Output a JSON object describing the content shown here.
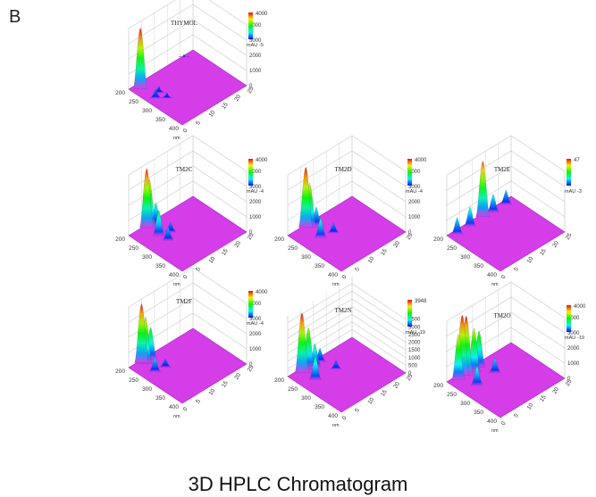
{
  "panel_label": "B",
  "caption": "3D HPLC Chromatogram",
  "colors": {
    "surface": "#d43de8",
    "surface_dark": "#a92ec0",
    "axes": "#8a8a8a",
    "grid": "#c8c8c8"
  },
  "chart_data": [
    {
      "type": "surface3d",
      "title": "THYMOL",
      "wavelength_axis": {
        "label": "nm",
        "ticks": [
          "200",
          "250",
          "300",
          "350",
          "400"
        ]
      },
      "time_axis": {
        "ticks": [
          "0",
          "5",
          "10",
          "15",
          "20",
          "25"
        ]
      },
      "z_axis": {
        "ticks": [
          "0",
          "1000",
          "2000",
          "3000",
          "4000"
        ],
        "range": [
          0,
          4000
        ]
      },
      "colorbar": {
        "max_label": "4000",
        "unit_label": "mAU",
        "min_label": "-5"
      },
      "peaks": [
        {
          "time": 3.0,
          "wavelength": 215,
          "height": 3900
        },
        {
          "time": 3.2,
          "wavelength": 270,
          "height": 500
        },
        {
          "time": 5.5,
          "wavelength": 260,
          "height": 350
        },
        {
          "time": 5.5,
          "wavelength": 290,
          "height": 300
        },
        {
          "time": 21.5,
          "wavelength": 200,
          "height": 80
        }
      ]
    },
    {
      "type": "surface3d",
      "title": "TM2C",
      "wavelength_axis": {
        "label": "nm",
        "ticks": [
          "200",
          "250",
          "300",
          "350",
          "400"
        ]
      },
      "time_axis": {
        "ticks": [
          "0",
          "5",
          "10",
          "15",
          "20",
          "25"
        ]
      },
      "z_axis": {
        "ticks": [
          "0",
          "1000",
          "2000",
          "3000",
          "4000"
        ],
        "range": [
          0,
          4000
        ]
      },
      "colorbar": {
        "max_label": "4000",
        "unit_label": "mAU",
        "min_label": "-4"
      },
      "peaks": [
        {
          "time": 6.5,
          "wavelength": 205,
          "height": 3800
        },
        {
          "time": 7.5,
          "wavelength": 205,
          "height": 3000
        },
        {
          "time": 6.5,
          "wavelength": 250,
          "height": 1600
        },
        {
          "time": 9.5,
          "wavelength": 210,
          "height": 1300
        },
        {
          "time": 7.0,
          "wavelength": 280,
          "height": 800
        },
        {
          "time": 10.0,
          "wavelength": 260,
          "height": 600
        }
      ]
    },
    {
      "type": "surface3d",
      "title": "TM2D",
      "wavelength_axis": {
        "label": "nm",
        "ticks": [
          "200",
          "250",
          "300",
          "350",
          "400"
        ]
      },
      "time_axis": {
        "ticks": [
          "0",
          "5",
          "10",
          "15",
          "20",
          "25"
        ]
      },
      "z_axis": {
        "ticks": [
          "0",
          "1000",
          "2000",
          "3000",
          "4000"
        ],
        "range": [
          0,
          4000
        ]
      },
      "colorbar": {
        "max_label": "4000",
        "unit_label": "mAU",
        "min_label": "-4"
      },
      "peaks": [
        {
          "time": 6.5,
          "wavelength": 205,
          "height": 3900
        },
        {
          "time": 7.5,
          "wavelength": 210,
          "height": 2800
        },
        {
          "time": 6.5,
          "wavelength": 260,
          "height": 1200
        },
        {
          "time": 9.5,
          "wavelength": 215,
          "height": 1100
        },
        {
          "time": 10.5,
          "wavelength": 270,
          "height": 600
        }
      ]
    },
    {
      "type": "surface3d",
      "title": "TM2E",
      "wavelength_axis": {
        "label": "nm",
        "ticks": [
          "200",
          "250",
          "300",
          "350",
          "400"
        ]
      },
      "time_axis": {
        "ticks": [
          "0",
          "5",
          "10",
          "15",
          "20",
          "25"
        ]
      },
      "z_axis": {
        "ticks": [],
        "range": [
          0,
          47
        ]
      },
      "colorbar": {
        "max_label": "47",
        "unit_label": "mAU",
        "min_label": "-3"
      },
      "peaks": [
        {
          "time": 13.5,
          "wavelength": 205,
          "height": 42
        },
        {
          "time": 3.0,
          "wavelength": 210,
          "height": 12
        },
        {
          "time": 8.0,
          "wavelength": 210,
          "height": 14
        },
        {
          "time": 17.0,
          "wavelength": 210,
          "height": 13
        },
        {
          "time": 22.0,
          "wavelength": 210,
          "height": 10
        }
      ]
    },
    {
      "type": "surface3d",
      "title": "TM2F",
      "wavelength_axis": {
        "label": "nm",
        "ticks": [
          "200",
          "250",
          "300",
          "350",
          "400"
        ]
      },
      "time_axis": {
        "ticks": [
          "0",
          "5",
          "10",
          "15",
          "20",
          "25"
        ]
      },
      "z_axis": {
        "ticks": [
          "0",
          "1000",
          "2000",
          "3000",
          "4000"
        ],
        "range": [
          0,
          4000
        ]
      },
      "colorbar": {
        "max_label": "4000",
        "unit_label": "mAU",
        "min_label": "-4"
      },
      "peaks": [
        {
          "time": 4.5,
          "wavelength": 205,
          "height": 3800
        },
        {
          "time": 5.0,
          "wavelength": 215,
          "height": 3000
        },
        {
          "time": 7.5,
          "wavelength": 210,
          "height": 2000
        },
        {
          "time": 4.5,
          "wavelength": 255,
          "height": 900
        },
        {
          "time": 8.0,
          "wavelength": 260,
          "height": 500
        }
      ]
    },
    {
      "type": "surface3d",
      "title": "TM2N",
      "wavelength_axis": {
        "label": "nm",
        "ticks": [
          "200",
          "250",
          "300",
          "350",
          "400"
        ]
      },
      "time_axis": {
        "ticks": [
          "0",
          "5",
          "10",
          "15",
          "20",
          "25"
        ]
      },
      "z_axis": {
        "ticks": [
          "0",
          "500",
          "1000",
          "1500",
          "2000",
          "2500",
          "3000",
          "3500"
        ],
        "range": [
          0,
          3948
        ]
      },
      "colorbar": {
        "max_label": "3948",
        "unit_label": "mAU",
        "min_label": "-19"
      },
      "peaks": [
        {
          "time": 4.5,
          "wavelength": 210,
          "height": 3800
        },
        {
          "time": 7.0,
          "wavelength": 210,
          "height": 2600
        },
        {
          "time": 5.0,
          "wavelength": 255,
          "height": 1500
        },
        {
          "time": 9.0,
          "wavelength": 215,
          "height": 1400
        },
        {
          "time": 11.5,
          "wavelength": 210,
          "height": 800
        },
        {
          "time": 12.5,
          "wavelength": 260,
          "height": 500
        }
      ]
    },
    {
      "type": "surface3d",
      "title": "TM2O",
      "wavelength_axis": {
        "label": "nm",
        "ticks": [
          "200",
          "250",
          "300",
          "350",
          "400"
        ]
      },
      "time_axis": {
        "ticks": [
          "0",
          "5",
          "10",
          "15",
          "20",
          "25"
        ]
      },
      "z_axis": {
        "ticks": [
          "0",
          "1000",
          "2000",
          "3000",
          "4000"
        ],
        "range": [
          0,
          4000
        ]
      },
      "colorbar": {
        "max_label": "4000",
        "unit_label": "mAU",
        "min_label": "-19"
      },
      "peaks": [
        {
          "time": 3.5,
          "wavelength": 210,
          "height": 2900
        },
        {
          "time": 5.5,
          "wavelength": 205,
          "height": 3900
        },
        {
          "time": 6.5,
          "wavelength": 210,
          "height": 3800
        },
        {
          "time": 9.0,
          "wavelength": 215,
          "height": 2800
        },
        {
          "time": 11.5,
          "wavelength": 210,
          "height": 2300
        },
        {
          "time": 5.5,
          "wavelength": 260,
          "height": 1200
        },
        {
          "time": 13.0,
          "wavelength": 255,
          "height": 900
        }
      ]
    }
  ]
}
